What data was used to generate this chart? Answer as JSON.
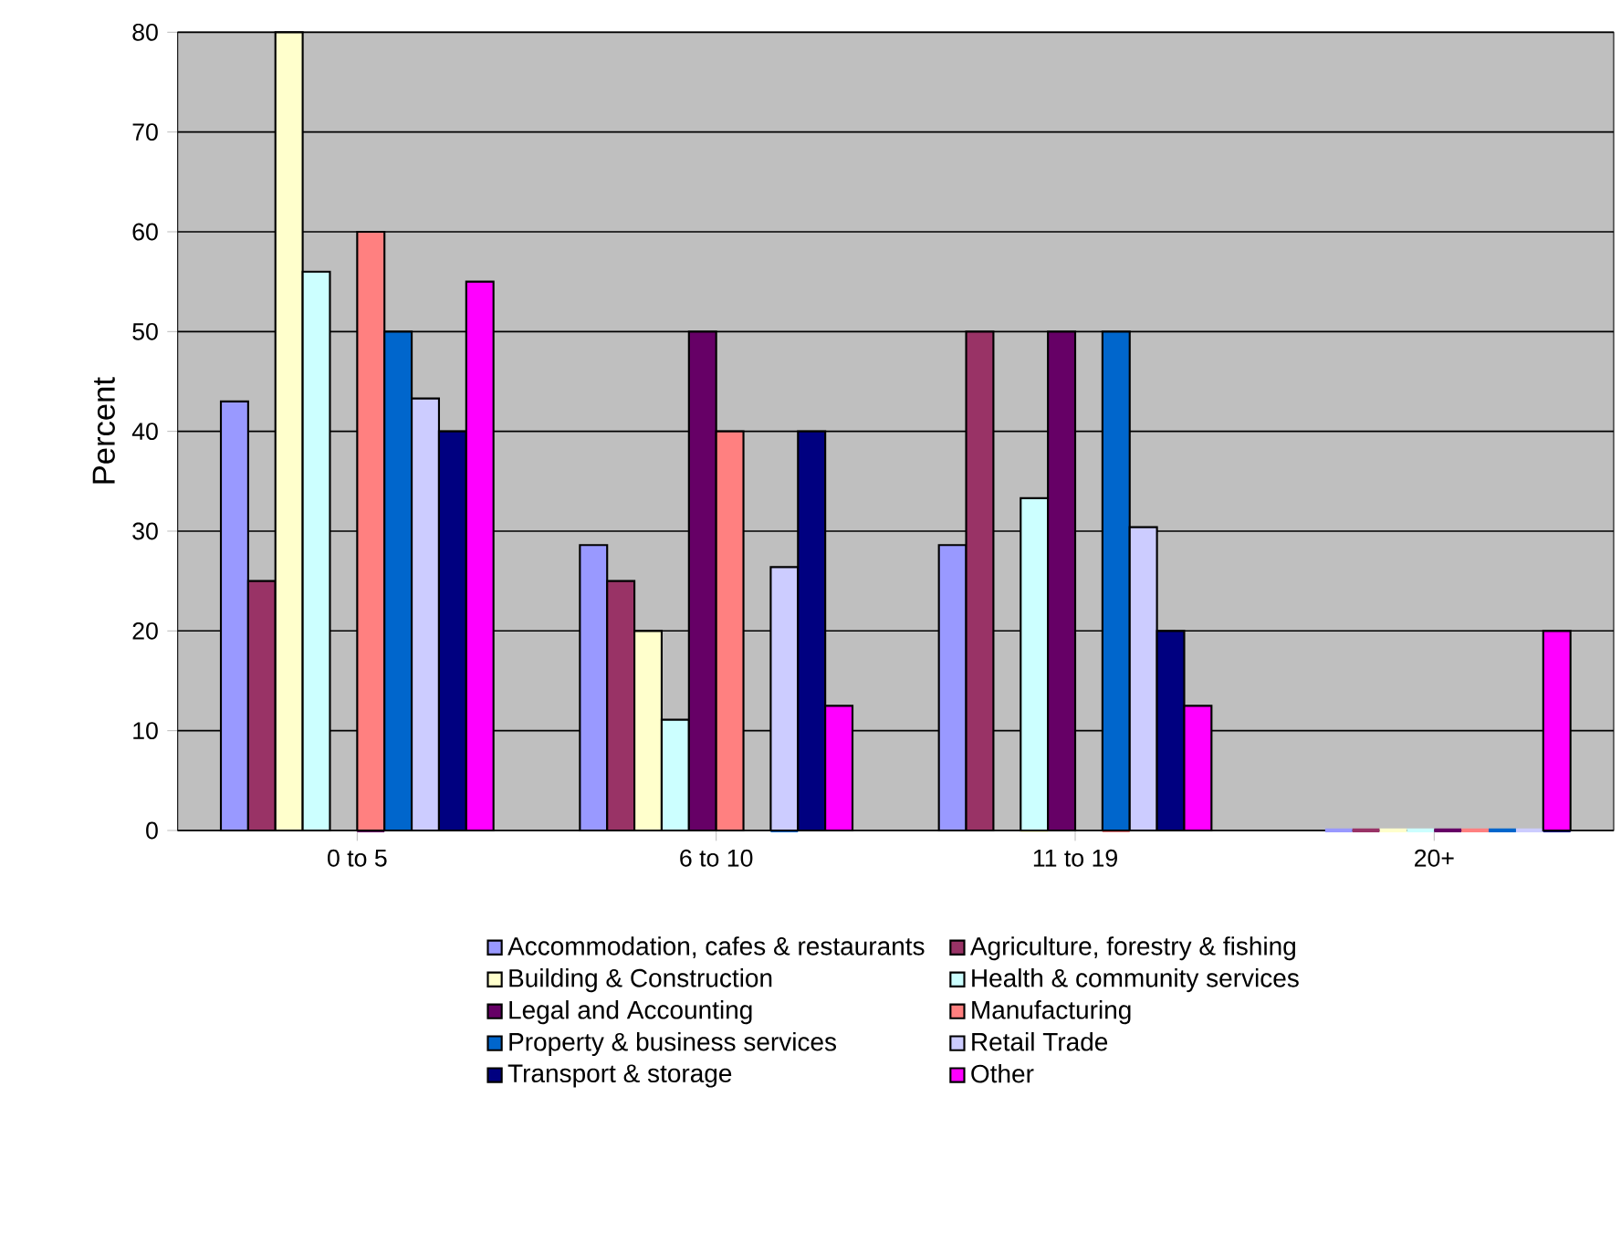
{
  "chart_data": {
    "type": "bar",
    "ylabel": "Percent",
    "categories": [
      "0 to 5",
      "6 to 10",
      "11 to 19",
      "20+"
    ],
    "ylim": [
      0,
      80
    ],
    "yticks": [
      0,
      10,
      20,
      30,
      40,
      50,
      60,
      70,
      80
    ],
    "grid": "y",
    "legend": "bottom",
    "series": [
      {
        "name": "Accommodation, cafes & restaurants",
        "color": "#9999ff",
        "values": [
          43,
          28.6,
          28.6,
          0
        ]
      },
      {
        "name": "Agriculture, forestry & fishing",
        "color": "#993366",
        "values": [
          25,
          25,
          50,
          0
        ]
      },
      {
        "name": "Building & Construction",
        "color": "#ffffcc",
        "values": [
          80,
          20,
          0,
          0
        ]
      },
      {
        "name": "Health & community services",
        "color": "#ccffff",
        "values": [
          56,
          11.1,
          33.3,
          0
        ]
      },
      {
        "name": "Legal and Accounting",
        "color": "#660066",
        "values": [
          0,
          50,
          50,
          0
        ]
      },
      {
        "name": "Manufacturing",
        "color": "#ff8080",
        "values": [
          60,
          40,
          0,
          0
        ]
      },
      {
        "name": "Property & business services",
        "color": "#0066cc",
        "values": [
          50,
          0,
          50,
          0
        ]
      },
      {
        "name": "Retail Trade",
        "color": "#ccccff",
        "values": [
          43.3,
          26.4,
          30.4,
          0
        ]
      },
      {
        "name": "Transport & storage",
        "color": "#000080",
        "values": [
          40,
          40,
          20,
          0
        ]
      },
      {
        "name": "Other",
        "color": "#ff00ff",
        "values": [
          55,
          12.5,
          12.5,
          20
        ]
      }
    ]
  }
}
